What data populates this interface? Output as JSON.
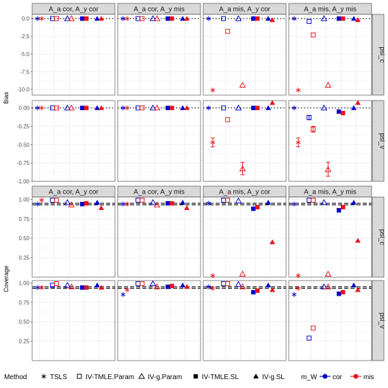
{
  "chart_data": [
    {
      "type": "scatter",
      "ylabel": "Bias",
      "columns": [
        "A_a cor, A_y cor",
        "A_a cor, A_y mis",
        "A_a mis, A_y cor",
        "A_a mis, A_y mis"
      ],
      "rows": [
        {
          "label": "psi_c",
          "ylim": [
            -10.8,
            0.6
          ],
          "ticks": [
            0.0,
            -2.5,
            -5.0,
            -7.5,
            -10.0
          ],
          "tick_labels": [
            "0.0",
            "-2.5",
            "-5.0",
            "-7.5",
            "-10.0"
          ],
          "reference_line": 0
        },
        {
          "label": "psi_v",
          "ylim": [
            -1.0,
            0.1
          ],
          "ticks": [
            0.0,
            -0.25,
            -0.5,
            -0.75,
            -1.0
          ],
          "tick_labels": [
            "0.00",
            "-0.25",
            "-0.50",
            "-0.75",
            "-1.00"
          ],
          "reference_line": 0
        }
      ],
      "methods": [
        "TSLS",
        "IV-TMLE.Param",
        "IV-g.Param",
        "IV-TMLE.SL",
        "IV-g.SL"
      ],
      "points": [
        {
          "row": 0,
          "col": 0,
          "values": [
            [
              0,
              0
            ],
            [
              0,
              0
            ],
            [
              0,
              0
            ],
            [
              0,
              0
            ],
            [
              0,
              0
            ]
          ]
        },
        {
          "row": 0,
          "col": 1,
          "values": [
            [
              0,
              0
            ],
            [
              0,
              0
            ],
            [
              0,
              0
            ],
            [
              0,
              0
            ],
            [
              0,
              0
            ]
          ]
        },
        {
          "row": 0,
          "col": 2,
          "values": [
            [
              0,
              -10.1
            ],
            [
              0,
              -1.8
            ],
            [
              0,
              -9.4
            ],
            [
              0,
              0
            ],
            [
              0,
              -0.2
            ]
          ]
        },
        {
          "row": 0,
          "col": 3,
          "values": [
            [
              0,
              -10.1
            ],
            [
              -0.4,
              -2.3
            ],
            [
              0,
              -9.4
            ],
            [
              0,
              0
            ],
            [
              0,
              -0.2
            ]
          ]
        },
        {
          "row": 1,
          "col": 0,
          "values": [
            [
              0,
              0
            ],
            [
              0,
              0
            ],
            [
              0,
              0
            ],
            [
              0,
              0
            ],
            [
              0,
              0
            ]
          ]
        },
        {
          "row": 1,
          "col": 1,
          "values": [
            [
              0,
              0
            ],
            [
              0,
              0
            ],
            [
              0,
              0
            ],
            [
              0,
              0
            ],
            [
              0,
              0
            ]
          ]
        },
        {
          "row": 1,
          "col": 2,
          "values": [
            [
              0,
              -0.47
            ],
            [
              0,
              -0.16
            ],
            [
              0,
              -0.83
            ],
            [
              0,
              0
            ],
            [
              0,
              0.07
            ]
          ]
        },
        {
          "row": 1,
          "col": 3,
          "values": [
            [
              0,
              -0.47
            ],
            [
              -0.13,
              -0.29
            ],
            [
              0,
              -0.84
            ],
            [
              -0.05,
              -0.07
            ],
            [
              0,
              0.07
            ]
          ]
        }
      ],
      "errorbars": [
        {
          "row": 1,
          "col": 2,
          "method": 0,
          "group": 1,
          "low": -0.53,
          "high": -0.41
        },
        {
          "row": 1,
          "col": 2,
          "method": 2,
          "group": 1,
          "low": -0.91,
          "high": -0.74
        },
        {
          "row": 1,
          "col": 3,
          "method": 0,
          "group": 1,
          "low": -0.53,
          "high": -0.41
        },
        {
          "row": 1,
          "col": 3,
          "method": 2,
          "group": 1,
          "low": -0.93,
          "high": -0.74
        },
        {
          "row": 1,
          "col": 3,
          "method": 1,
          "group": 0,
          "low": -0.16,
          "high": -0.1
        },
        {
          "row": 1,
          "col": 3,
          "method": 1,
          "group": 1,
          "low": -0.33,
          "high": -0.25
        }
      ]
    },
    {
      "type": "scatter",
      "ylabel": "Coverage",
      "columns": [
        "A_a cor, A_y cor",
        "A_a cor, A_y mis",
        "A_a mis, A_y cor",
        "A_a mis, A_y mis"
      ],
      "rows": [
        {
          "label": "psi_c",
          "ylim": [
            0.0,
            1.03
          ],
          "ticks": [
            1.0,
            0.75,
            0.5,
            0.25
          ],
          "tick_labels": [
            "1.00",
            "0.75",
            "0.50",
            "0.25"
          ],
          "reference_lines": [
            0.95,
            0.93
          ]
        },
        {
          "label": "psi_v",
          "ylim": [
            0.0,
            1.03
          ],
          "ticks": [
            1.0,
            0.75,
            0.5,
            0.25
          ],
          "tick_labels": [
            "1.00",
            "0.75",
            "0.50",
            "0.25"
          ],
          "reference_lines": [
            0.95,
            0.93
          ]
        }
      ],
      "methods": [
        "TSLS",
        "IV-TMLE.Param",
        "IV-g.Param",
        "IV-TMLE.SL",
        "IV-g.SL"
      ],
      "points": [
        {
          "row": 0,
          "col": 0,
          "values": [
            [
              0.94,
              0.99
            ],
            [
              0.99,
              0.99
            ],
            [
              0.96,
              0.93
            ],
            [
              0.94,
              0.95
            ],
            [
              0.96,
              0.89
            ]
          ]
        },
        {
          "row": 0,
          "col": 1,
          "values": [
            [
              0.94,
              0.94
            ],
            [
              0.99,
              0.99
            ],
            [
              0.96,
              0.93
            ],
            [
              0.95,
              0.95
            ],
            [
              0.96,
              0.89
            ]
          ]
        },
        {
          "row": 0,
          "col": 2,
          "values": [
            [
              0.95,
              0.02
            ],
            [
              0.99,
              0.99
            ],
            [
              0.98,
              0.04
            ],
            [
              0.88,
              0.9
            ],
            [
              0.96,
              0.45
            ]
          ]
        },
        {
          "row": 0,
          "col": 3,
          "values": [
            [
              0.94,
              0.02
            ],
            [
              0.99,
              0.99
            ],
            [
              0.96,
              0.04
            ],
            [
              0.86,
              0.9
            ],
            [
              0.96,
              0.47
            ]
          ]
        },
        {
          "row": 1,
          "col": 0,
          "values": [
            [
              0.94,
              0.94
            ],
            [
              0.97,
              0.99
            ],
            [
              0.97,
              0.95
            ],
            [
              0.94,
              0.94
            ],
            [
              0.97,
              0.94
            ]
          ]
        },
        {
          "row": 1,
          "col": 1,
          "values": [
            [
              0.85,
              0.91
            ],
            [
              0.99,
              0.99
            ],
            [
              0.99,
              0.95
            ],
            [
              0.95,
              0.96
            ],
            [
              0.97,
              0.95
            ]
          ]
        },
        {
          "row": 1,
          "col": 2,
          "values": [
            [
              0.95,
              0.93
            ],
            [
              0.99,
              0.99
            ],
            [
              0.98,
              0.95
            ],
            [
              0.88,
              0.9
            ],
            [
              0.97,
              0.91
            ]
          ]
        },
        {
          "row": 1,
          "col": 3,
          "values": [
            [
              0.85,
              0.93
            ],
            [
              0.29,
              0.42
            ],
            [
              0.95,
              0.95
            ],
            [
              0.86,
              0.88
            ],
            [
              0.97,
              0.91
            ]
          ]
        }
      ]
    }
  ],
  "legend": {
    "method_title": "Method",
    "method_items": [
      "TSLS",
      "IV-TMLE.Param",
      "IV-g.Param",
      "IV-TMLE.SL",
      "IV-g.SL"
    ],
    "mw_title": "m_W",
    "mw_items": [
      "cor",
      "mis"
    ]
  },
  "colors": {
    "cor": "#0000CD",
    "mis": "#E8141A",
    "strip_bg": "#D9D9D9",
    "grid": "#EBEBEB",
    "frame": "#333333"
  }
}
